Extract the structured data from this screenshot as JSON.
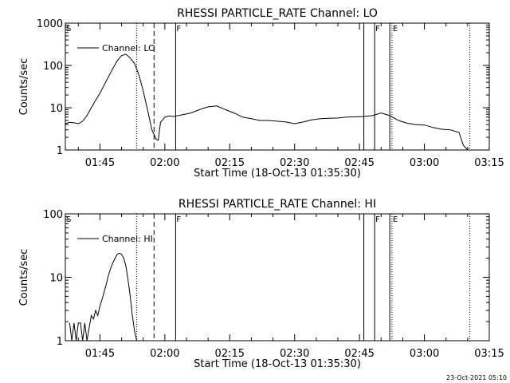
{
  "footer_stamp": "23-Oct-2021 05:10",
  "chart_data": [
    {
      "type": "line",
      "title": "RHESSI PARTICLE_RATE Channel: LO",
      "xlabel": "Start Time (18-Oct-13 01:35:30)",
      "ylabel": "Counts/sec",
      "y_scale": "log",
      "xlim": [
        "01:37:00",
        "03:15:00"
      ],
      "ylim": [
        1,
        1000
      ],
      "x_ticks": [
        "01:45",
        "02:00",
        "02:15",
        "02:30",
        "02:45",
        "03:00",
        "03:15"
      ],
      "y_ticks": [
        "1",
        "10",
        "100",
        "1000"
      ],
      "legend": {
        "position": "top-left",
        "entries": [
          "Channel: LO"
        ]
      },
      "markers": [
        {
          "time": "01:37:00",
          "style": "none",
          "label": "S"
        },
        {
          "time": "01:53:30",
          "style": "dotted",
          "label": ""
        },
        {
          "time": "01:57:30",
          "style": "dashed",
          "label": ""
        },
        {
          "time": "02:02:30",
          "style": "solid",
          "label": "F"
        },
        {
          "time": "02:46:00",
          "style": "solid",
          "label": ""
        },
        {
          "time": "02:48:30",
          "style": "solid",
          "label": "F"
        },
        {
          "time": "02:52:00",
          "style": "solid",
          "label": ""
        },
        {
          "time": "02:52:30",
          "style": "dotted",
          "label": "E"
        },
        {
          "time": "03:10:30",
          "style": "dotted",
          "label": ""
        }
      ],
      "series": [
        {
          "name": "Channel: LO",
          "x": [
            "01:37:00",
            "01:38:00",
            "01:39:00",
            "01:40:00",
            "01:41:00",
            "01:42:00",
            "01:43:00",
            "01:44:00",
            "01:45:00",
            "01:46:00",
            "01:47:00",
            "01:48:00",
            "01:49:00",
            "01:50:00",
            "01:51:00",
            "01:52:00",
            "01:53:00",
            "01:54:00",
            "01:55:00",
            "01:56:00",
            "01:57:00",
            "01:58:00",
            "01:58:30",
            "01:59:00",
            "02:00:00",
            "02:01:00",
            "02:02:00",
            "02:04:00",
            "02:06:00",
            "02:08:00",
            "02:10:00",
            "02:12:00",
            "02:14:00",
            "02:16:00",
            "02:18:00",
            "02:20:00",
            "02:22:00",
            "02:24:00",
            "02:26:00",
            "02:28:00",
            "02:30:00",
            "02:32:00",
            "02:34:00",
            "02:36:00",
            "02:38:00",
            "02:40:00",
            "02:42:00",
            "02:44:00",
            "02:46:00",
            "02:48:00",
            "02:50:00",
            "02:52:00",
            "02:54:00",
            "02:56:00",
            "02:58:00",
            "03:00:00",
            "03:02:00",
            "03:04:00",
            "03:06:00",
            "03:08:00",
            "03:09:00",
            "03:10:00"
          ],
          "y": [
            4.2,
            4.5,
            4.4,
            4.2,
            4.8,
            6.5,
            10,
            15,
            22,
            35,
            55,
            85,
            130,
            170,
            185,
            150,
            110,
            60,
            25,
            9,
            3,
            1.8,
            1.7,
            4.5,
            6,
            6.4,
            6.2,
            6.8,
            7.5,
            9,
            10.5,
            11,
            9,
            7.5,
            6,
            5.5,
            5,
            5,
            4.8,
            4.6,
            4.2,
            4.6,
            5.2,
            5.5,
            5.6,
            5.7,
            6,
            6.1,
            6.2,
            6.5,
            7.5,
            6.5,
            5,
            4.3,
            4,
            3.9,
            3.4,
            3.1,
            3,
            2.6,
            1.3,
            1.0
          ]
        }
      ]
    },
    {
      "type": "line",
      "title": "RHESSI PARTICLE_RATE Channel: HI",
      "xlabel": "Start Time (18-Oct-13 01:35:30)",
      "ylabel": "Counts/sec",
      "y_scale": "log",
      "xlim": [
        "01:37:00",
        "03:15:00"
      ],
      "ylim": [
        1,
        100
      ],
      "x_ticks": [
        "01:45",
        "02:00",
        "02:15",
        "02:30",
        "02:45",
        "03:00",
        "03:15"
      ],
      "y_ticks": [
        "1",
        "10",
        "100"
      ],
      "legend": {
        "position": "top-left",
        "entries": [
          "Channel: HI"
        ]
      },
      "markers": [
        {
          "time": "01:37:00",
          "style": "none",
          "label": "S"
        },
        {
          "time": "01:53:30",
          "style": "dotted",
          "label": ""
        },
        {
          "time": "01:57:30",
          "style": "dashed",
          "label": ""
        },
        {
          "time": "02:02:30",
          "style": "solid",
          "label": "F"
        },
        {
          "time": "02:46:00",
          "style": "solid",
          "label": ""
        },
        {
          "time": "02:48:30",
          "style": "solid",
          "label": "F"
        },
        {
          "time": "02:52:00",
          "style": "solid",
          "label": ""
        },
        {
          "time": "02:52:30",
          "style": "dotted",
          "label": "E"
        },
        {
          "time": "03:10:30",
          "style": "dotted",
          "label": ""
        }
      ],
      "series": [
        {
          "name": "Channel: HI",
          "x": [
            "01:38:00",
            "01:38:30",
            "01:39:00",
            "01:39:30",
            "01:40:00",
            "01:40:30",
            "01:41:00",
            "01:41:30",
            "01:42:00",
            "01:42:30",
            "01:43:00",
            "01:43:30",
            "01:44:00",
            "01:44:30",
            "01:45:00",
            "01:45:30",
            "01:46:00",
            "01:46:30",
            "01:47:00",
            "01:47:30",
            "01:48:00",
            "01:48:30",
            "01:49:00",
            "01:49:30",
            "01:50:00",
            "01:50:30",
            "01:51:00",
            "01:51:30",
            "01:52:00",
            "01:52:30",
            "01:53:00",
            "01:53:30"
          ],
          "y": [
            1.9,
            1.0,
            1.9,
            1.0,
            1.9,
            1.9,
            1.0,
            1.9,
            1.0,
            1.6,
            2.5,
            2.2,
            3.0,
            2.5,
            3.5,
            4.5,
            6,
            8,
            11,
            14,
            17,
            20,
            23,
            24,
            23,
            20,
            15,
            9,
            5,
            2.5,
            1.4,
            1.0
          ]
        }
      ]
    }
  ]
}
